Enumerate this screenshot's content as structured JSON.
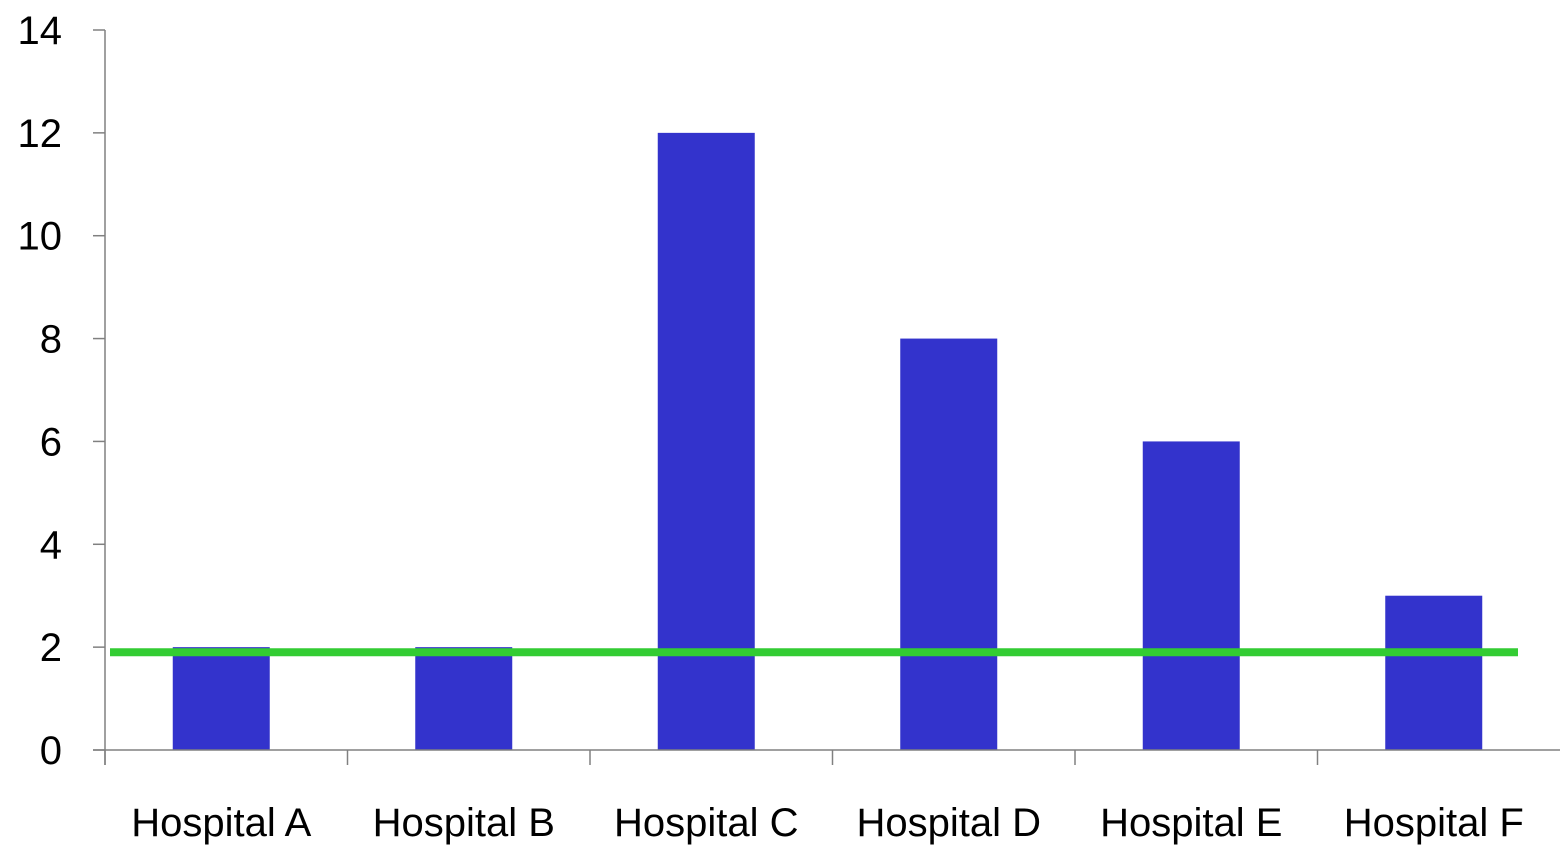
{
  "chart_data": {
    "type": "bar",
    "title": "",
    "xlabel": "",
    "ylabel": "",
    "categories": [
      "Hospital A",
      "Hospital B",
      "Hospital C",
      "Hospital D",
      "Hospital E",
      "Hospital F"
    ],
    "values": [
      2,
      2,
      12,
      8,
      6,
      3
    ],
    "reference_line": {
      "value": 1.9,
      "color": "#33cc33"
    },
    "ylim": [
      0,
      14
    ],
    "y_ticks": [
      "0",
      "2",
      "4",
      "6",
      "8",
      "10",
      "12",
      "14"
    ],
    "grid": false,
    "legend": "none",
    "bar_color": "#3333cc",
    "axis_color": "#808080"
  }
}
